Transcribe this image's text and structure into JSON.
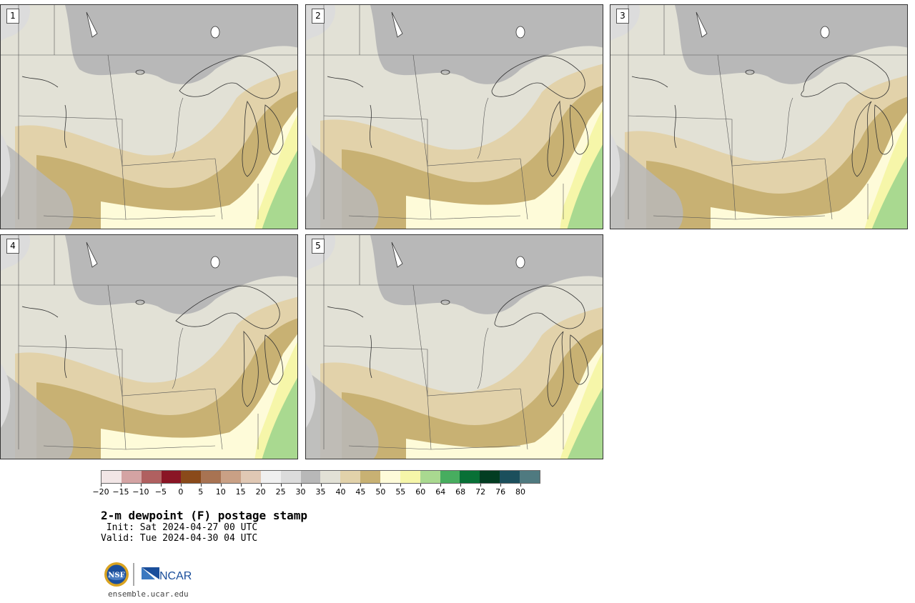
{
  "panels": [
    {
      "label": "1"
    },
    {
      "label": "2"
    },
    {
      "label": "3"
    },
    {
      "label": "4"
    },
    {
      "label": "5"
    }
  ],
  "colorbar": {
    "colors": [
      "#f2e6e6",
      "#d4a3a3",
      "#b06060",
      "#8a1525",
      "#8a4a1a",
      "#a87352",
      "#c9a085",
      "#e0c8b4",
      "#f0f0f0",
      "#dcdcdc",
      "#b8b8b8",
      "#e2e1d6",
      "#e2d2aa",
      "#c8b173",
      "#fefbd9",
      "#f6f6a9",
      "#a9d990",
      "#47ad5f",
      "#087036",
      "#033d22",
      "#1b4f5c",
      "#4f7a80"
    ],
    "ticks": [
      "−20",
      "−15",
      "−10",
      "−5",
      "0",
      "5",
      "10",
      "15",
      "20",
      "25",
      "30",
      "35",
      "40",
      "45",
      "50",
      "55",
      "60",
      "64",
      "68",
      "72",
      "76",
      "80"
    ]
  },
  "title": "2-m dewpoint (F) postage stamp",
  "init": " Init: Sat 2024-04-27 00 UTC",
  "valid": "Valid: Tue 2024-04-30 04 UTC",
  "logo": {
    "nsf": "NSF",
    "ncar": "NCAR"
  },
  "url": "ensemble.ucar.edu"
}
